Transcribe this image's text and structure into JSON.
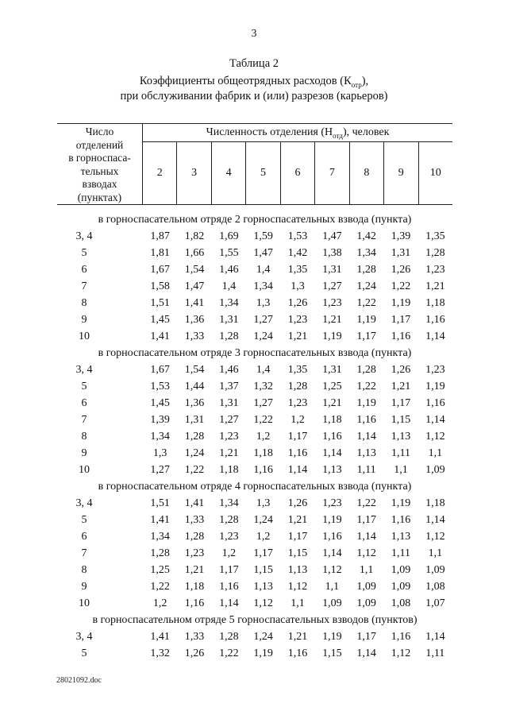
{
  "page": {
    "number": "3",
    "footer": "28021092.doc"
  },
  "caption": "Таблица 2",
  "title": {
    "line1_pre": "Коэффициенты общеотрядных расходов (К",
    "line1_sub": "отр",
    "line1_post": "),",
    "line2": "при обслуживании фабрик и (или) разрезов (карьеров)"
  },
  "table": {
    "row_header": "Число\nотделений\nв горноспаса-\nтельных\nвзводах\n(пунктах)",
    "col_group_pre": "Численность отделения (Н",
    "col_group_sub": "отд",
    "col_group_post": "), человек",
    "columns": [
      "2",
      "3",
      "4",
      "5",
      "6",
      "7",
      "8",
      "9",
      "10"
    ],
    "sections": [
      {
        "header": "в горноспасательном отряде 2 горноспасательных взвода (пункта)",
        "rows": [
          {
            "label": "3, 4",
            "values": [
              "1,87",
              "1,82",
              "1,69",
              "1,59",
              "1,53",
              "1,47",
              "1,42",
              "1,39",
              "1,35"
            ]
          },
          {
            "label": "5",
            "values": [
              "1,81",
              "1,66",
              "1,55",
              "1,47",
              "1,42",
              "1,38",
              "1,34",
              "1,31",
              "1,28"
            ]
          },
          {
            "label": "6",
            "values": [
              "1,67",
              "1,54",
              "1,46",
              "1,4",
              "1,35",
              "1,31",
              "1,28",
              "1,26",
              "1,23"
            ]
          },
          {
            "label": "7",
            "values": [
              "1,58",
              "1,47",
              "1,4",
              "1,34",
              "1,3",
              "1,27",
              "1,24",
              "1,22",
              "1,21"
            ]
          },
          {
            "label": "8",
            "values": [
              "1,51",
              "1,41",
              "1,34",
              "1,3",
              "1,26",
              "1,23",
              "1,22",
              "1,19",
              "1,18"
            ]
          },
          {
            "label": "9",
            "values": [
              "1,45",
              "1,36",
              "1,31",
              "1,27",
              "1,23",
              "1,21",
              "1,19",
              "1,17",
              "1,16"
            ]
          },
          {
            "label": "10",
            "values": [
              "1,41",
              "1,33",
              "1,28",
              "1,24",
              "1,21",
              "1,19",
              "1,17",
              "1,16",
              "1,14"
            ]
          }
        ]
      },
      {
        "header": "в горноспасательном отряде 3 горноспасательных взвода (пункта)",
        "rows": [
          {
            "label": "3, 4",
            "values": [
              "1,67",
              "1,54",
              "1,46",
              "1,4",
              "1,35",
              "1,31",
              "1,28",
              "1,26",
              "1,23"
            ]
          },
          {
            "label": "5",
            "values": [
              "1,53",
              "1,44",
              "1,37",
              "1,32",
              "1,28",
              "1,25",
              "1,22",
              "1,21",
              "1,19"
            ]
          },
          {
            "label": "6",
            "values": [
              "1,45",
              "1,36",
              "1,31",
              "1,27",
              "1,23",
              "1,21",
              "1,19",
              "1,17",
              "1,16"
            ]
          },
          {
            "label": "7",
            "values": [
              "1,39",
              "1,31",
              "1,27",
              "1,22",
              "1,2",
              "1,18",
              "1,16",
              "1,15",
              "1,14"
            ]
          },
          {
            "label": "8",
            "values": [
              "1,34",
              "1,28",
              "1,23",
              "1,2",
              "1,17",
              "1,16",
              "1,14",
              "1,13",
              "1,12"
            ]
          },
          {
            "label": "9",
            "values": [
              "1,3",
              "1,24",
              "1,21",
              "1,18",
              "1,16",
              "1,14",
              "1,13",
              "1,11",
              "1,1"
            ]
          },
          {
            "label": "10",
            "values": [
              "1,27",
              "1,22",
              "1,18",
              "1,16",
              "1,14",
              "1,13",
              "1,11",
              "1,1",
              "1,09"
            ]
          }
        ]
      },
      {
        "header": "в горноспасательном отряде 4 горноспасательных взвода (пункта)",
        "rows": [
          {
            "label": "3, 4",
            "values": [
              "1,51",
              "1,41",
              "1,34",
              "1,3",
              "1,26",
              "1,23",
              "1,22",
              "1,19",
              "1,18"
            ]
          },
          {
            "label": "5",
            "values": [
              "1,41",
              "1,33",
              "1,28",
              "1,24",
              "1,21",
              "1,19",
              "1,17",
              "1,16",
              "1,14"
            ]
          },
          {
            "label": "6",
            "values": [
              "1,34",
              "1,28",
              "1,23",
              "1,2",
              "1,17",
              "1,16",
              "1,14",
              "1,13",
              "1,12"
            ]
          },
          {
            "label": "7",
            "values": [
              "1,28",
              "1,23",
              "1,2",
              "1,17",
              "1,15",
              "1,14",
              "1,12",
              "1,11",
              "1,1"
            ]
          },
          {
            "label": "8",
            "values": [
              "1,25",
              "1,21",
              "1,17",
              "1,15",
              "1,13",
              "1,12",
              "1,1",
              "1,09",
              "1,09"
            ]
          },
          {
            "label": "9",
            "values": [
              "1,22",
              "1,18",
              "1,16",
              "1,13",
              "1,12",
              "1,1",
              "1,09",
              "1,09",
              "1,08"
            ]
          },
          {
            "label": "10",
            "values": [
              "1,2",
              "1,16",
              "1,14",
              "1,12",
              "1,1",
              "1,09",
              "1,09",
              "1,08",
              "1,07"
            ]
          }
        ]
      },
      {
        "header": "в горноспасательном отряде 5 горноспасательных взводов (пунктов)",
        "rows": [
          {
            "label": "3, 4",
            "values": [
              "1,41",
              "1,33",
              "1,28",
              "1,24",
              "1,21",
              "1,19",
              "1,17",
              "1,16",
              "1,14"
            ]
          },
          {
            "label": "5",
            "values": [
              "1,32",
              "1,26",
              "1,22",
              "1,19",
              "1,16",
              "1,15",
              "1,14",
              "1,12",
              "1,11"
            ]
          }
        ]
      }
    ]
  }
}
